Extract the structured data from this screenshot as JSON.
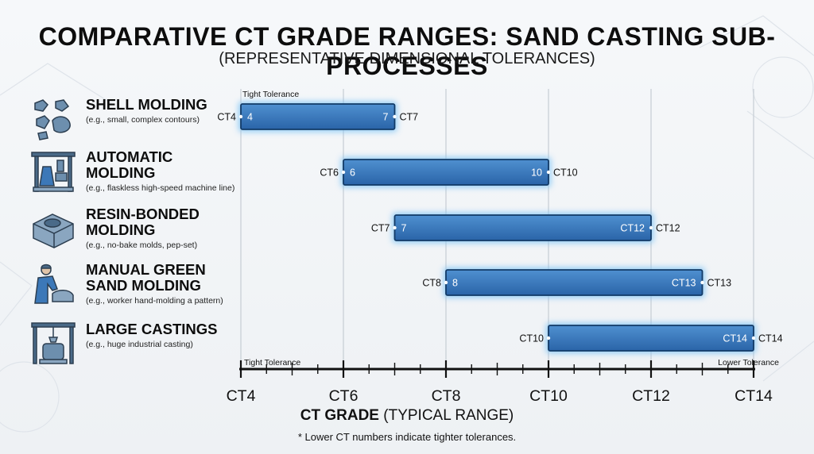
{
  "title": "COMPARATIVE CT GRADE RANGES: SAND CASTING SUB-PROCESSES",
  "subtitle": "(REPRESENTATIVE DIMENSIONAL TOLERANCES)",
  "processes": [
    {
      "name": "SHELL MOLDING",
      "example": "(e.g., small, complex contours)",
      "icon": "shell-mold-parts-icon"
    },
    {
      "name": "AUTOMATIC MOLDING",
      "example": "(e.g., flaskless high-speed machine line)",
      "icon": "machine-line-icon"
    },
    {
      "name": "RESIN-BONDED MOLDING",
      "example": "(e.g., no-bake molds, pep-set)",
      "icon": "resin-mold-block-icon"
    },
    {
      "name": "MANUAL GREEN SAND MOLDING",
      "example": "(e.g., worker hand-molding a pattern)",
      "icon": "worker-molding-icon"
    },
    {
      "name": "LARGE CASTINGS",
      "example": "(e.g., huge industrial casting)",
      "icon": "crane-casting-icon"
    }
  ],
  "chart_data": {
    "type": "bar",
    "orientation": "horizontal-range",
    "title": "COMPARATIVE CT GRADE RANGES: SAND CASTING SUB-PROCESSES",
    "subtitle": "(REPRESENTATIVE DIMENSIONAL TOLERANCES)",
    "categories": [
      "SHELL MOLDING",
      "AUTOMATIC MOLDING",
      "RESIN-BONDED MOLDING",
      "MANUAL GREEN SAND MOLDING",
      "LARGE CASTINGS"
    ],
    "ranges": [
      {
        "start": 4,
        "end": 7,
        "start_label": "CT4",
        "end_label": "CT7",
        "inner_start": "4",
        "inner_end": "7"
      },
      {
        "start": 6,
        "end": 10,
        "start_label": "CT6",
        "end_label": "CT10",
        "inner_start": "6",
        "inner_end": "10"
      },
      {
        "start": 7,
        "end": 12,
        "start_label": "CT7",
        "end_label": "CT12",
        "inner_start": "7",
        "inner_end": "CT12"
      },
      {
        "start": 8,
        "end": 13,
        "start_label": "CT8",
        "end_label": "CT13",
        "inner_start": "8",
        "inner_end": "CT13"
      },
      {
        "start": 10,
        "end": 14,
        "start_label": "CT10",
        "end_label": "CT14",
        "inner_start": "",
        "inner_end": "CT14"
      }
    ],
    "xlim": [
      4,
      14
    ],
    "major_ticks": [
      4,
      6,
      8,
      10,
      12,
      14
    ],
    "tick_labels": [
      "CT4",
      "CT6",
      "CT8",
      "CT10",
      "CT12",
      "CT14"
    ],
    "minor_tick_step": 0.5,
    "xlabel_bold": "CT GRADE",
    "xlabel_rest": " (TYPICAL RANGE)",
    "annotations": {
      "top_left": "Tight Tolerance",
      "axis_left": "Tight Tolerance",
      "axis_right": "Lower Tolerance"
    },
    "footnote": "* Lower CT numbers indicate tighter tolerances.",
    "grid": true,
    "colors": {
      "bar_top": "#4f90d0",
      "bar_bottom": "#2a64a8",
      "bar_border": "#123a66",
      "glow": "#7fc4f5",
      "grid": "#c9cfd6",
      "axis": "#111111"
    }
  }
}
